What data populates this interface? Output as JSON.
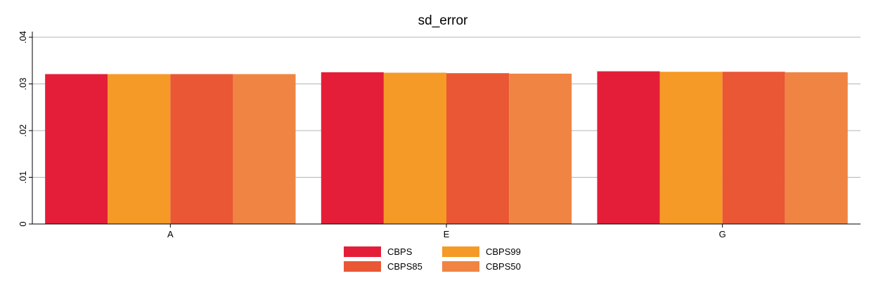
{
  "chart_data": {
    "type": "bar",
    "title": "sd_error",
    "xlabel": "",
    "ylabel": "",
    "categories": [
      "A",
      "E",
      "G"
    ],
    "ylim": [
      0,
      0.04
    ],
    "yticks": [
      0,
      0.01,
      0.02,
      0.03,
      0.04
    ],
    "ytick_labels": [
      "0",
      ".01",
      ".02",
      ".03",
      ".04"
    ],
    "grid": true,
    "legend_position": "bottom",
    "series": [
      {
        "name": "CBPS",
        "color": "#e41e38",
        "values": [
          0.0321,
          0.0325,
          0.0327
        ]
      },
      {
        "name": "CBPS99",
        "color": "#f59a27",
        "values": [
          0.0321,
          0.0324,
          0.0326
        ]
      },
      {
        "name": "CBPS85",
        "color": "#e95735",
        "values": [
          0.0321,
          0.0323,
          0.0326
        ]
      },
      {
        "name": "CBPS50",
        "color": "#f08543",
        "values": [
          0.0321,
          0.0322,
          0.0325
        ]
      }
    ]
  }
}
